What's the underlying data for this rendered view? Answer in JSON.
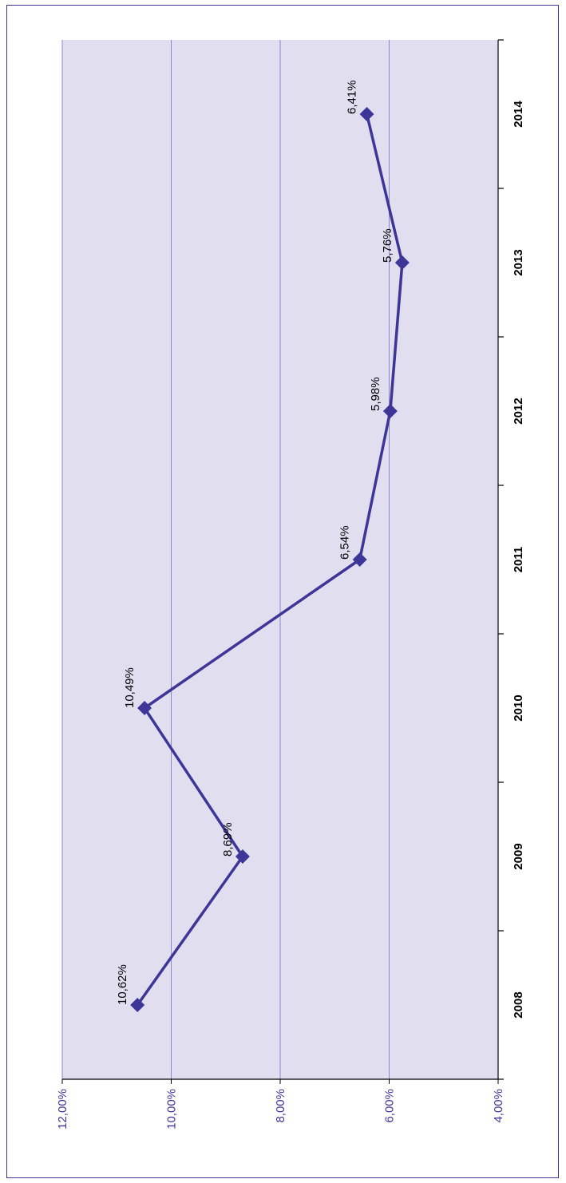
{
  "colors": {
    "frame": "#3d3597",
    "plot_bg": "#e0deef",
    "gridline": "#8c87d0",
    "series": "#3d3597",
    "axis": "#000000",
    "y_tick_text": "#3d3597",
    "x_tick_text": "#000000",
    "data_label_text": "#000000"
  },
  "chart_data": {
    "type": "line",
    "orientation": "rotated-90-clockwise",
    "title": "",
    "xlabel": "",
    "ylabel": "",
    "categories": [
      "2008",
      "2009",
      "2010",
      "2011",
      "2012",
      "2013",
      "2014"
    ],
    "series": [
      {
        "values": [
          10.62,
          8.69,
          10.49,
          6.54,
          5.98,
          5.76,
          6.41
        ],
        "labels": [
          "10,62%",
          "8,69%",
          "10,49%",
          "6,54%",
          "5,98%",
          "5,76%",
          "6,41%"
        ],
        "marker": "diamond"
      }
    ],
    "ylim": [
      4,
      12
    ],
    "yticks": [
      12,
      10,
      8,
      6,
      4
    ],
    "ytick_labels": [
      "12,00%",
      "10,00%",
      "8,00%",
      "6,00%",
      "4,00%"
    ],
    "grid": true,
    "legend": "none"
  }
}
